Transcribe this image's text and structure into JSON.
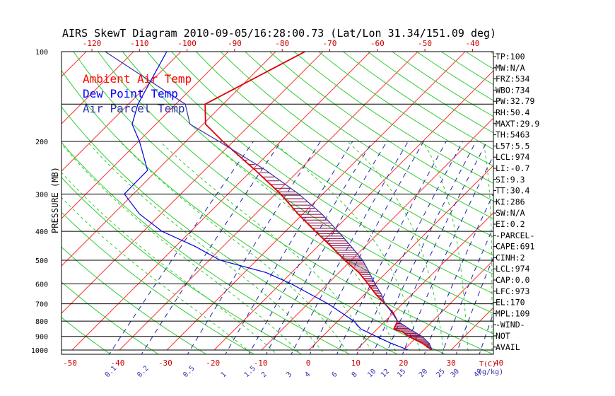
{
  "chart_data": {
    "type": "skewt",
    "title": "AIRS SkewT Diagram 2010-09-05/16:28:00.73 (Lat/Lon 31.34/151.09 deg)",
    "ylabel": "PRESSURE (MB)",
    "xlabel": "T(C)",
    "mixing_ratio_label": "(g/kg)",
    "ylim": [
      1000,
      100
    ],
    "pressure_ticks": [
      100,
      200,
      300,
      400,
      500,
      600,
      700,
      800,
      900,
      1000
    ],
    "top_temp_ticks": [
      -120,
      -110,
      -100,
      -90,
      -80,
      -70,
      -60,
      -50,
      -40
    ],
    "bottom_temp_ticks": [
      -50,
      -40,
      -30,
      -20,
      -10,
      0,
      10,
      20,
      30,
      40
    ],
    "mixing_ratio_ticks": [
      "0.1",
      "0.2",
      "0.5",
      "1",
      "1.5",
      "2",
      "3",
      "4",
      "6",
      "8",
      "10",
      "12",
      "15",
      "20",
      "25",
      "30",
      "40"
    ],
    "legend": [
      {
        "label": "Ambient Air Temp",
        "color": "#ff0000"
      },
      {
        "label": "Dew Point Temp",
        "color": "#0000ff"
      },
      {
        "label": "Air Parcel Temp",
        "color": "#3333aa"
      }
    ],
    "series": [
      {
        "name": "Ambient Air Temp",
        "color": "#e00000",
        "points": [
          [
            100,
            -63.8
          ],
          [
            150,
            -73.8
          ],
          [
            175,
            -69.5
          ],
          [
            200,
            -62.2
          ],
          [
            250,
            -49.2
          ],
          [
            300,
            -38.9
          ],
          [
            350,
            -31.0
          ],
          [
            400,
            -23.7
          ],
          [
            450,
            -17.1
          ],
          [
            500,
            -11.4
          ],
          [
            550,
            -5.8
          ],
          [
            600,
            -1.5
          ],
          [
            650,
            2.3
          ],
          [
            700,
            6.3
          ],
          [
            750,
            9.9
          ],
          [
            800,
            12.6
          ],
          [
            850,
            13.5
          ],
          [
            870,
            16.0
          ],
          [
            900,
            18.2
          ],
          [
            950,
            22.6
          ],
          [
            1000,
            26.0
          ]
        ]
      },
      {
        "name": "Dew Point Temp",
        "color": "#0000dd",
        "points": [
          [
            100,
            -93.0
          ],
          [
            150,
            -88.0
          ],
          [
            175,
            -85.0
          ],
          [
            200,
            -79.8
          ],
          [
            250,
            -72.0
          ],
          [
            300,
            -71.9
          ],
          [
            350,
            -64.5
          ],
          [
            400,
            -56.1
          ],
          [
            450,
            -45.8
          ],
          [
            500,
            -37.7
          ],
          [
            550,
            -25.4
          ],
          [
            600,
            -17.7
          ],
          [
            650,
            -11.5
          ],
          [
            700,
            -5.7
          ],
          [
            750,
            -1.0
          ],
          [
            800,
            3.4
          ],
          [
            850,
            6.5
          ],
          [
            900,
            11.3
          ],
          [
            950,
            16.0
          ],
          [
            1000,
            21.0
          ]
        ]
      },
      {
        "name": "Air Parcel Temp",
        "color": "#3333aa",
        "points": [
          [
            100,
            -106.0
          ],
          [
            150,
            -78.0
          ],
          [
            175,
            -72.8
          ],
          [
            200,
            -63.0
          ],
          [
            250,
            -47.0
          ],
          [
            300,
            -35.1
          ],
          [
            350,
            -26.0
          ],
          [
            400,
            -18.9
          ],
          [
            450,
            -12.9
          ],
          [
            500,
            -7.6
          ],
          [
            550,
            -3.6
          ],
          [
            600,
            0.0
          ],
          [
            650,
            3.5
          ],
          [
            700,
            6.3
          ],
          [
            750,
            9.7
          ],
          [
            800,
            12.6
          ],
          [
            850,
            16.8
          ],
          [
            900,
            21.0
          ],
          [
            950,
            24.0
          ],
          [
            1000,
            26.0
          ]
        ]
      }
    ],
    "indices": [
      "TP:100",
      "MW:N/A",
      "FRZ:534",
      "WBO:734",
      "PW:32.79",
      "RH:50.4",
      "MAXT:29.9",
      "TH:5463",
      "L57:5.5",
      "LCL:974",
      "LI:-0.7",
      "SI:9.3",
      "TT:30.4",
      "KI:286",
      "SW:N/A",
      "EI:0.2",
      "-PARCEL-",
      "CAPE:691",
      "CINH:2",
      "LCL:974",
      "CAP:0.0",
      "LFC:973",
      "EL:170",
      "MPL:109",
      "-WIND-",
      "NOT",
      "AVAIL"
    ]
  },
  "colors": {
    "isotherm": "#ff3333",
    "dry_adiabat": "#33cc33",
    "moist_adiabat": "#33cc33",
    "mixing_ratio": "#2222aa",
    "axis": "#000000",
    "tick_label": "#cc0000",
    "mixing_label": "#3333aa"
  }
}
